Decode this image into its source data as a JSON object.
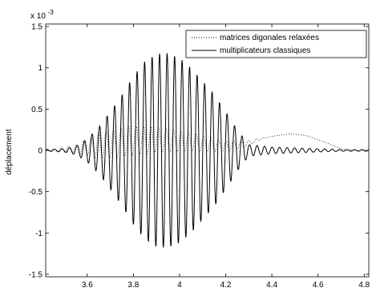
{
  "chart_data": {
    "type": "line",
    "title": "",
    "xlabel": "",
    "ylabel": "déplacement",
    "y_exponent": "x 10",
    "y_exponent_power": "-3",
    "xlim": [
      3.42,
      4.82
    ],
    "ylim": [
      -1.53,
      1.53
    ],
    "x_ticks": [
      3.6,
      3.8,
      4.0,
      4.2,
      4.4,
      4.6,
      4.8
    ],
    "x_tick_labels": [
      "3.6",
      "3.8",
      "4",
      "4.2",
      "4.4",
      "4.6",
      "4.8"
    ],
    "y_ticks": [
      -1.5,
      -1,
      -0.5,
      0,
      0.5,
      1,
      1.5
    ],
    "y_tick_labels": [
      "-1.5",
      "-1",
      "-0.5",
      "0",
      "0.5",
      "1",
      "1.5"
    ],
    "grid": false,
    "legend_position": "top-right",
    "series": [
      {
        "name": "matrices digonales relaxées",
        "style": "dotted",
        "color": "#000000",
        "x": [
          3.42,
          3.55,
          3.7,
          3.8,
          3.9,
          3.95,
          4.0,
          4.05,
          4.1,
          4.2,
          4.3,
          4.35,
          4.4,
          4.45,
          4.48,
          4.55,
          4.6,
          4.65,
          4.7,
          4.75,
          4.82
        ],
        "y": [
          0.0,
          0.02,
          0.08,
          0.12,
          0.13,
          0.12,
          0.11,
          0.1,
          0.08,
          0.05,
          0.09,
          0.14,
          0.17,
          0.19,
          0.2,
          0.18,
          0.13,
          0.08,
          0.02,
          0.0,
          0.0
        ],
        "oscillation_envelope": [
          0.0,
          0.05,
          0.16,
          0.18,
          0.17,
          0.14,
          0.11,
          0.08,
          0.05,
          0.02,
          0.0
        ]
      },
      {
        "name": "multiplicateurs classiques",
        "style": "solid",
        "color": "#000000",
        "x": [
          3.42,
          3.5,
          3.55,
          3.6,
          3.65,
          3.7,
          3.75,
          3.8,
          3.85,
          3.9,
          3.95,
          4.0,
          4.05,
          4.1,
          4.15,
          4.2,
          4.25,
          4.3,
          4.4,
          4.5,
          4.6,
          4.7,
          4.82
        ],
        "envelope": [
          0.01,
          0.02,
          0.05,
          0.14,
          0.28,
          0.47,
          0.67,
          0.9,
          1.08,
          1.17,
          1.18,
          1.12,
          1.0,
          0.84,
          0.68,
          0.47,
          0.25,
          0.07,
          0.04,
          0.03,
          0.02,
          0.01,
          0.01
        ],
        "oscillation_period": 0.0325
      }
    ]
  }
}
